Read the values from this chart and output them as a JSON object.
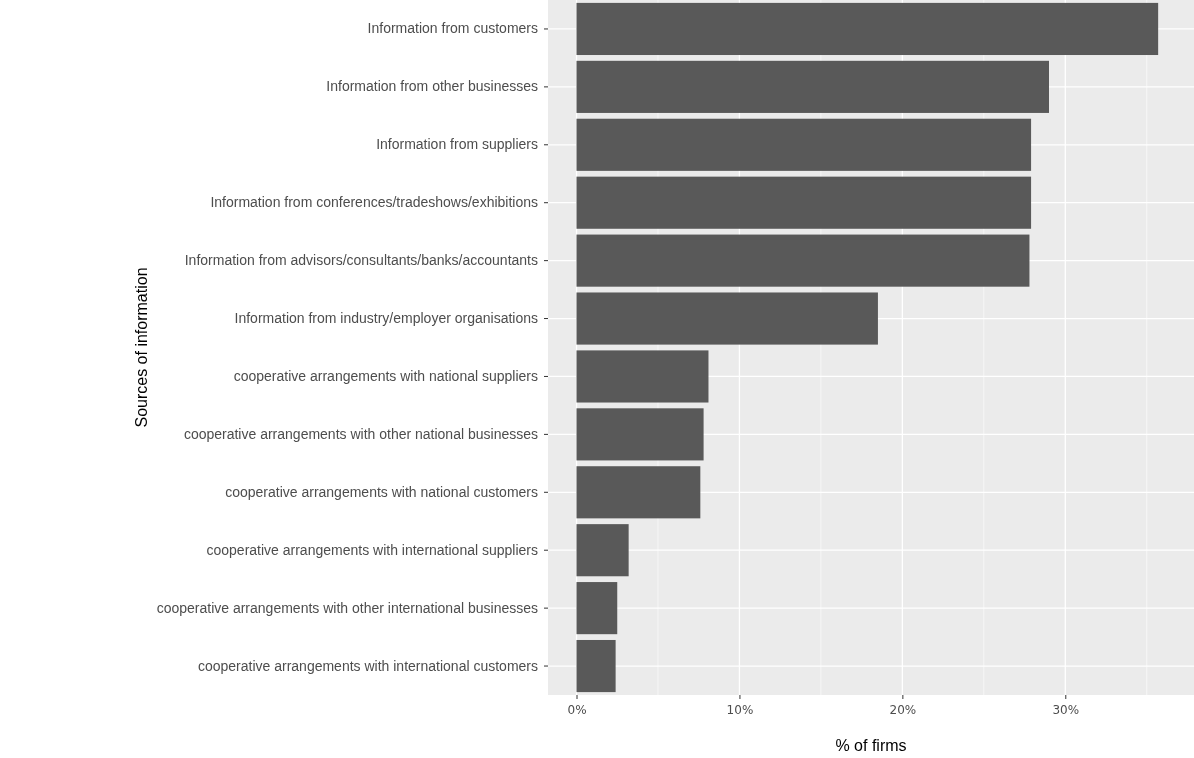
{
  "chart_data": {
    "type": "bar",
    "orientation": "horizontal",
    "xlabel": "% of firms",
    "ylabel": "Sources of information",
    "categories": [
      "Information from customers",
      "Information from other businesses",
      "Information from suppliers",
      "Information from conferences/tradeshows/exhibitions",
      "Information from advisors/consultants/banks/accountants",
      "Information from industry/employer organisations",
      "cooperative arrangements with national suppliers",
      "cooperative arrangements with other national businesses",
      "cooperative arrangements with national customers",
      "cooperative arrangements with international suppliers",
      "cooperative arrangements with other international businesses",
      "cooperative arrangements with international customers"
    ],
    "values": [
      35.7,
      29.0,
      27.9,
      27.9,
      27.8,
      18.5,
      8.1,
      7.8,
      7.6,
      3.2,
      2.5,
      2.4
    ],
    "color": "#595959",
    "xlim": [
      -1.75,
      37.9
    ],
    "xticks": [
      {
        "value": 0,
        "label": "0%"
      },
      {
        "value": 10,
        "label": "10%"
      },
      {
        "value": 20,
        "label": "20%"
      },
      {
        "value": 30,
        "label": "30%"
      }
    ],
    "grid": true
  }
}
